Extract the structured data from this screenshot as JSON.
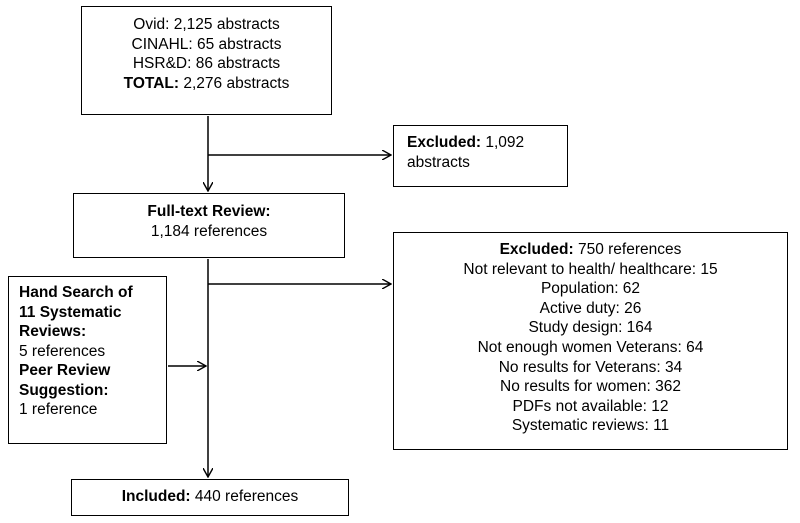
{
  "sources": {
    "line1": "Ovid: 2,125 abstracts",
    "line2": "CINAHL: 65 abstracts",
    "line3": "HSR&D: 86 abstracts",
    "total_label": "TOTAL:",
    "total_value": " 2,276 abstracts"
  },
  "excluded_abstracts": {
    "label": "Excluded:",
    "value": " 1,092",
    "line2": "abstracts"
  },
  "full_text_review": {
    "label": "Full-text Review:",
    "value": "1,184 references"
  },
  "excluded_references": {
    "label": "Excluded:",
    "value": " 750 references",
    "reasons": [
      "Not relevant to health/ healthcare: 15",
      "Population: 62",
      "Active duty: 26",
      "Study design: 164",
      "Not enough women Veterans: 64",
      "No results for Veterans: 34",
      "No results for women: 362",
      "PDFs not available: 12",
      "Systematic reviews: 11"
    ]
  },
  "hand_search": {
    "label_line1": "Hand Search of",
    "label_line2": "11 Systematic",
    "label_line3": "Reviews:",
    "value": "5 references",
    "peer_label_line1": "Peer Review",
    "peer_label_line2": "Suggestion:",
    "peer_value": "1 reference"
  },
  "included": {
    "label": "Included:",
    "value": " 440 references"
  }
}
